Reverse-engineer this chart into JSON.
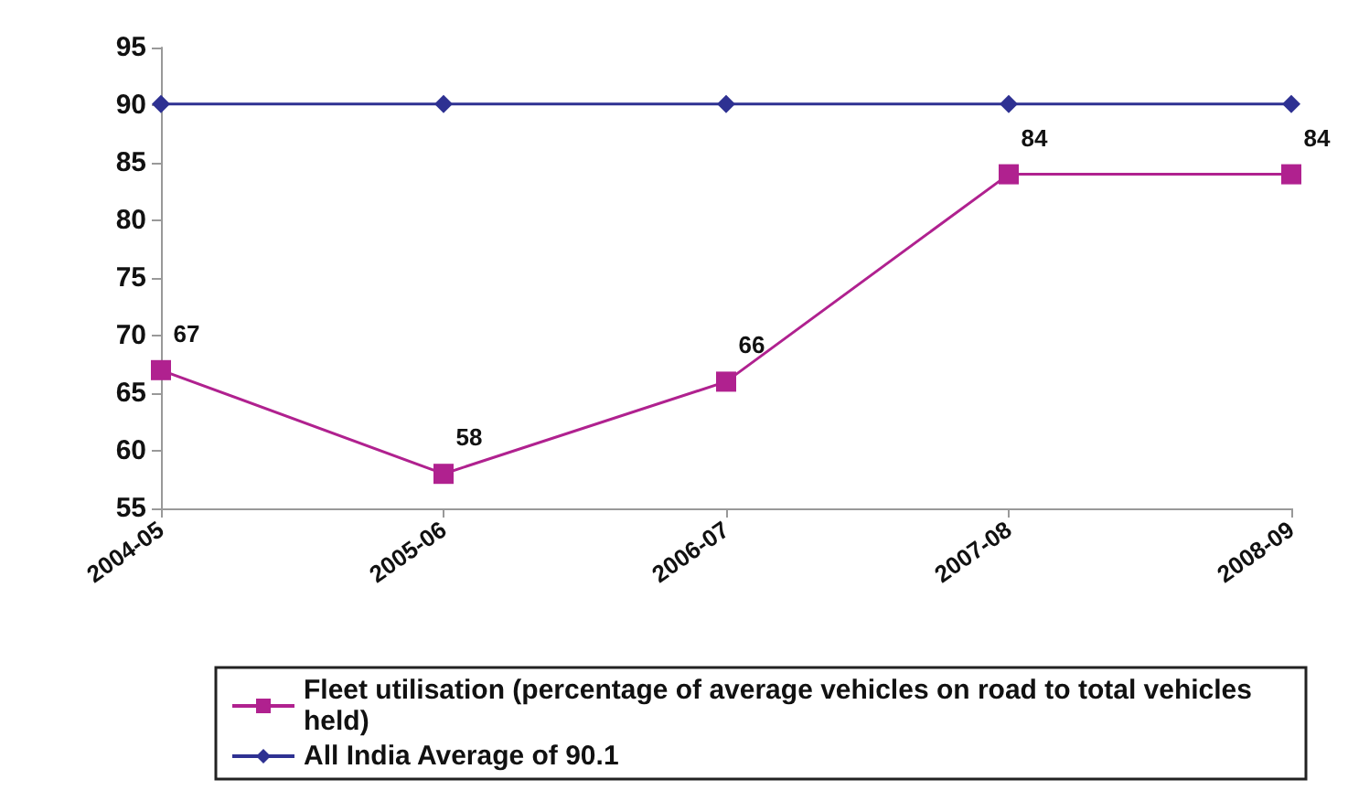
{
  "chart_data": {
    "type": "line",
    "categories": [
      "2004-05",
      "2005-06",
      "2006-07",
      "2007-08",
      "2008-09"
    ],
    "series": [
      {
        "name": "Fleet utilisation (percentage of average vehicles on road to total vehicles held)",
        "color": "#b0218f",
        "marker": "square",
        "values": [
          67,
          58,
          66,
          84,
          84
        ],
        "value_labels": [
          "67",
          "58",
          "66",
          "84",
          "84"
        ]
      },
      {
        "name": "All India Average of 90.1",
        "color": "#2e3192",
        "marker": "diamond",
        "values": [
          90.1,
          90.1,
          90.1,
          90.1,
          90.1
        ]
      }
    ],
    "ylim": [
      55,
      95
    ],
    "yticks": [
      55,
      60,
      65,
      70,
      75,
      80,
      85,
      90,
      95
    ],
    "grid": false,
    "legend": "bottom"
  }
}
